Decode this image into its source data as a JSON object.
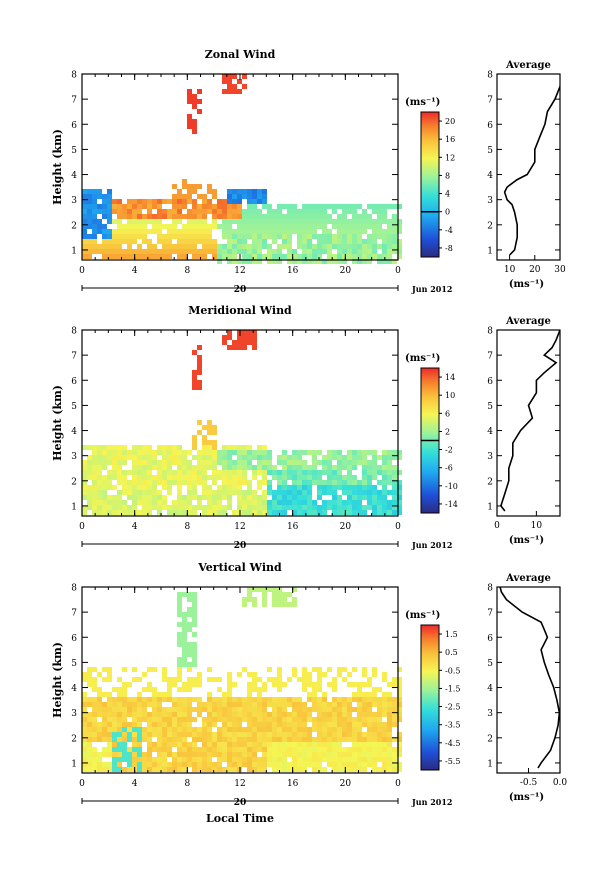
{
  "chart_data": [
    {
      "type": "heatmap",
      "title": "Zonal Wind",
      "ylabel": "Height (km)",
      "x_ticks": [
        "0",
        "4",
        "8",
        "12",
        "16",
        "20",
        "0"
      ],
      "y_ticks": [
        "1",
        "2",
        "3",
        "4",
        "5",
        "6",
        "7",
        "8"
      ],
      "xlim": [
        0,
        24
      ],
      "ylim": [
        0.6,
        8.0
      ],
      "colorbar": {
        "unit": "(ms⁻¹)",
        "ticks": [
          "20",
          "16",
          "12",
          "8",
          "4",
          "0",
          "-4",
          "-8"
        ],
        "range": [
          -10,
          22
        ],
        "contour_at": 0
      },
      "profile": {
        "title": "Average",
        "xlabel": "(ms⁻¹)",
        "x_ticks": [
          "10",
          "20",
          "30"
        ],
        "xlim": [
          5,
          30
        ],
        "y": [
          0.8,
          1.0,
          1.5,
          2.0,
          2.5,
          2.8,
          3.0,
          3.3,
          3.5,
          3.8,
          4.0,
          4.5,
          5.0,
          5.5,
          6.0,
          6.5,
          7.0,
          7.5,
          8.0
        ],
        "x": [
          10,
          12,
          13,
          13,
          12,
          11,
          9,
          8,
          9,
          13,
          17,
          20,
          20,
          22,
          24,
          25,
          28,
          30,
          31
        ]
      }
    },
    {
      "type": "heatmap",
      "title": "Meridional Wind",
      "ylabel": "Height (km)",
      "x_ticks": [
        "0",
        "4",
        "8",
        "12",
        "16",
        "20",
        "0"
      ],
      "y_ticks": [
        "1",
        "2",
        "3",
        "4",
        "5",
        "6",
        "7",
        "8"
      ],
      "xlim": [
        0,
        24
      ],
      "ylim": [
        0.6,
        8.0
      ],
      "colorbar": {
        "unit": "(ms⁻¹)",
        "ticks": [
          "14",
          "10",
          "6",
          "2",
          "-2",
          "-6",
          "-10",
          "-14"
        ],
        "range": [
          -16,
          16
        ],
        "contour_at": 0
      },
      "profile": {
        "title": "Average",
        "xlabel": "(ms⁻¹)",
        "x_ticks": [
          "0",
          "10"
        ],
        "xlim": [
          0,
          16
        ],
        "y": [
          0.8,
          1.0,
          1.5,
          2.0,
          2.5,
          3.0,
          3.5,
          4.0,
          4.5,
          5.0,
          5.5,
          6.0,
          6.3,
          6.7,
          7.0,
          7.3,
          7.6,
          8.0
        ],
        "x": [
          2,
          1,
          2,
          3,
          3,
          4,
          4,
          6,
          9,
          8,
          10,
          10,
          12,
          15,
          12,
          14,
          15,
          16
        ]
      }
    },
    {
      "type": "heatmap",
      "title": "Vertical Wind",
      "ylabel": "Height (km)",
      "xlabel": "Local Time",
      "x_ticks": [
        "0",
        "4",
        "8",
        "12",
        "16",
        "20",
        "0"
      ],
      "y_ticks": [
        "1",
        "2",
        "3",
        "4",
        "5",
        "6",
        "7",
        "8"
      ],
      "xlim": [
        0,
        24
      ],
      "ylim": [
        0.6,
        8.0
      ],
      "colorbar": {
        "unit": "(ms⁻¹)",
        "ticks": [
          "1.5",
          "0.5",
          "-0.5",
          "-1.5",
          "-2.5",
          "-3.5",
          "-4.5",
          "-5.5"
        ],
        "range": [
          -6,
          2
        ]
      },
      "profile": {
        "title": "Average",
        "xlabel": "(ms⁻¹)",
        "x_ticks": [
          "-0.5",
          "0.0"
        ],
        "xlim": [
          -1.0,
          0.0
        ],
        "y": [
          0.8,
          1.0,
          1.5,
          2.0,
          2.5,
          3.0,
          3.5,
          4.0,
          4.5,
          5.0,
          5.5,
          6.0,
          6.3,
          6.6,
          7.0,
          7.5,
          7.8,
          8.0
        ],
        "x": [
          -0.35,
          -0.3,
          -0.15,
          -0.08,
          -0.03,
          -0.01,
          -0.05,
          -0.1,
          -0.18,
          -0.25,
          -0.3,
          -0.2,
          -0.25,
          -0.3,
          -0.6,
          -0.85,
          -0.93,
          -0.95
        ]
      }
    }
  ],
  "date_axis": {
    "day": "20",
    "label": "Jun 2012"
  }
}
